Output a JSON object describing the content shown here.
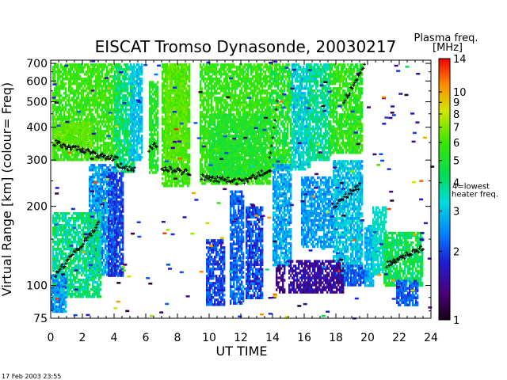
{
  "chart_data": {
    "type": "heatmap",
    "title": "EISCAT Tromso Dynasonde,  20030217",
    "xlabel": "UT TIME",
    "ylabel": "Virtual Range [km]   (colour= Freq)",
    "x_ticks": [
      "0",
      "2",
      "4",
      "6",
      "8",
      "10",
      "12",
      "14",
      "16",
      "18",
      "20",
      "22",
      "24"
    ],
    "xlim": [
      0,
      24
    ],
    "y_scale": "log",
    "y_ticks": [
      "75",
      "100",
      "200",
      "300",
      "400",
      "500",
      "600",
      "700"
    ],
    "ylim": [
      75,
      720
    ],
    "colorbar": {
      "title_line1": "Plasma freq.",
      "title_line2": "[MHz]",
      "ticks": [
        "1",
        "2",
        "3",
        "4",
        "5",
        "6",
        "7",
        "8",
        "9",
        "10",
        "14"
      ],
      "range": [
        1,
        14
      ],
      "marker_label_line1": "4=lowest",
      "marker_label_line2": "heater freq.",
      "marker_value": 4
    },
    "footer": "17 Feb 2003 23:55",
    "regions": [
      {
        "t": [
          0.1,
          4.4
        ],
        "r": [
          300,
          700
        ],
        "f": [
          5.0,
          6.5
        ]
      },
      {
        "t": [
          0.2,
          2.6
        ],
        "r": [
          340,
          420
        ],
        "f": [
          6.0,
          7.0
        ]
      },
      {
        "t": [
          4.0,
          5.3
        ],
        "r": [
          270,
          700
        ],
        "f": [
          3.2,
          5.2
        ]
      },
      {
        "t": [
          2.4,
          4.2
        ],
        "r": [
          110,
          290
        ],
        "f": [
          2.0,
          3.2
        ]
      },
      {
        "t": [
          3.6,
          4.6
        ],
        "r": [
          110,
          270
        ],
        "f": [
          1.6,
          2.3
        ]
      },
      {
        "t": [
          0.1,
          3.2
        ],
        "r": [
          90,
          190
        ],
        "f": [
          3.0,
          5.0
        ]
      },
      {
        "t": [
          0.0,
          1.0
        ],
        "r": [
          80,
          110
        ],
        "f": [
          2.0,
          3.2
        ]
      },
      {
        "t": [
          5.0,
          5.8
        ],
        "r": [
          300,
          700
        ],
        "f": [
          2.6,
          3.4
        ]
      },
      {
        "t": [
          6.2,
          6.8
        ],
        "r": [
          270,
          600
        ],
        "f": [
          4.5,
          6.0
        ]
      },
      {
        "t": [
          7.0,
          8.8
        ],
        "r": [
          240,
          700
        ],
        "f": [
          5.2,
          6.5
        ]
      },
      {
        "t": [
          7.2,
          8.6
        ],
        "r": [
          300,
          700
        ],
        "f": [
          5.8,
          7.0
        ]
      },
      {
        "t": [
          9.4,
          13.9
        ],
        "r": [
          245,
          700
        ],
        "f": [
          5.0,
          6.3
        ]
      },
      {
        "t": [
          10.0,
          13.6
        ],
        "r": [
          260,
          450
        ],
        "f": [
          4.5,
          5.6
        ]
      },
      {
        "t": [
          13.8,
          15.2
        ],
        "r": [
          280,
          700
        ],
        "f": [
          4.0,
          6.5
        ]
      },
      {
        "t": [
          14.0,
          15.2
        ],
        "r": [
          120,
          290
        ],
        "f": [
          2.2,
          3.2
        ]
      },
      {
        "t": [
          14.2,
          14.8
        ],
        "r": [
          95,
          120
        ],
        "f": [
          1.1,
          1.6
        ]
      },
      {
        "t": [
          15.2,
          16.4
        ],
        "r": [
          280,
          700
        ],
        "f": [
          2.6,
          4.0
        ]
      },
      {
        "t": [
          16.2,
          17.7
        ],
        "r": [
          300,
          700
        ],
        "f": [
          3.0,
          4.8
        ]
      },
      {
        "t": [
          17.6,
          19.7
        ],
        "r": [
          320,
          700
        ],
        "f": [
          4.5,
          6.5
        ]
      },
      {
        "t": [
          15.8,
          17.8
        ],
        "r": [
          140,
          260
        ],
        "f": [
          2.2,
          3.0
        ]
      },
      {
        "t": [
          17.8,
          19.6
        ],
        "r": [
          110,
          300
        ],
        "f": [
          2.4,
          3.6
        ]
      },
      {
        "t": [
          15.0,
          18.5
        ],
        "r": [
          95,
          125
        ],
        "f": [
          1.2,
          1.8
        ]
      },
      {
        "t": [
          18.5,
          19.8
        ],
        "r": [
          100,
          120
        ],
        "f": [
          1.8,
          2.4
        ]
      },
      {
        "t": [
          19.8,
          20.4
        ],
        "r": [
          100,
          170
        ],
        "f": [
          2.4,
          3.2
        ]
      },
      {
        "t": [
          20.3,
          21.2
        ],
        "r": [
          110,
          200
        ],
        "f": [
          3.0,
          3.8
        ]
      },
      {
        "t": [
          21.0,
          23.5
        ],
        "r": [
          100,
          160
        ],
        "f": [
          3.5,
          5.5
        ]
      },
      {
        "t": [
          21.8,
          23.2
        ],
        "r": [
          85,
          105
        ],
        "f": [
          1.8,
          2.5
        ]
      },
      {
        "t": [
          9.8,
          11.0
        ],
        "r": [
          85,
          150
        ],
        "f": [
          1.6,
          2.4
        ]
      },
      {
        "t": [
          11.3,
          12.2
        ],
        "r": [
          85,
          230
        ],
        "f": [
          1.8,
          2.6
        ]
      },
      {
        "t": [
          12.3,
          13.4
        ],
        "r": [
          90,
          200
        ],
        "f": [
          1.5,
          2.5
        ]
      }
    ],
    "traces": [
      {
        "t": [
          0.2,
          4.2
        ],
        "r": [
          350,
          300
        ]
      },
      {
        "t": [
          4.2,
          5.3
        ],
        "r": [
          290,
          275
        ]
      },
      {
        "t": [
          6.2,
          6.7
        ],
        "r": [
          330,
          345
        ]
      },
      {
        "t": [
          7.0,
          8.8
        ],
        "r": [
          280,
          268
        ]
      },
      {
        "t": [
          9.5,
          12.0
        ],
        "r": [
          258,
          248
        ]
      },
      {
        "t": [
          12.0,
          13.9
        ],
        "r": [
          248,
          275
        ]
      },
      {
        "t": [
          13.8,
          14.3
        ],
        "r": [
          300,
          500
        ]
      },
      {
        "t": [
          0.3,
          3.0
        ],
        "r": [
          110,
          170
        ]
      },
      {
        "t": [
          17.8,
          19.5
        ],
        "r": [
          200,
          240
        ]
      },
      {
        "t": [
          18.5,
          19.8
        ],
        "r": [
          500,
          680
        ]
      },
      {
        "t": [
          21.2,
          23.5
        ],
        "r": [
          120,
          140
        ]
      }
    ]
  }
}
